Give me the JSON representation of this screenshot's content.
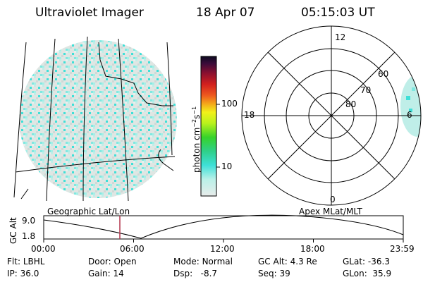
{
  "header": {
    "title": "Ultraviolet Imager",
    "date": "18 Apr 07",
    "time": "05:15:03 UT"
  },
  "colorbar": {
    "unit": "photon cm",
    "unit_exp1": "−2",
    "unit_mid": "s",
    "unit_exp2": "−1",
    "ticks": [
      "100",
      "10"
    ],
    "scale": "log"
  },
  "polar": {
    "mlt_labels": [
      "12",
      "18",
      "6",
      "0"
    ],
    "mlat_labels": [
      "60",
      "70",
      "80"
    ]
  },
  "panels": {
    "left_caption": "Geographic Lat/Lon",
    "right_caption": "Apex MLat/MLT"
  },
  "alt_plot": {
    "ylabel": "GC Alt",
    "yticks": [
      "9.0",
      "1.8"
    ],
    "xticks": [
      "00:00",
      "06:00",
      "12:00",
      "18:00",
      "23:59"
    ],
    "marker_color": "#b3364d"
  },
  "info": {
    "filter_label": "Flt:",
    "filter_value": "LBHL",
    "ip_label": "IP:",
    "ip_value": "36.0",
    "door_label": "Door:",
    "door_value": "Open",
    "gain_label": "Gain:",
    "gain_value": "14",
    "mode_label": "Mode:",
    "mode_value": "Normal",
    "dsp_label": "Dsp:",
    "dsp_value": "-8.7",
    "gcalt_label": "GC Alt:",
    "gcalt_value": "4.3 Re",
    "seq_label": "Seq:",
    "seq_value": "39",
    "glat_label": "GLat:",
    "glat_value": "-36.3",
    "glon_label": "GLon:",
    "glon_value": "35.9"
  },
  "colors": {
    "emission_low": "#d8e4e0",
    "emission_high": "#3ee0d8",
    "accent": "#b3364d"
  }
}
